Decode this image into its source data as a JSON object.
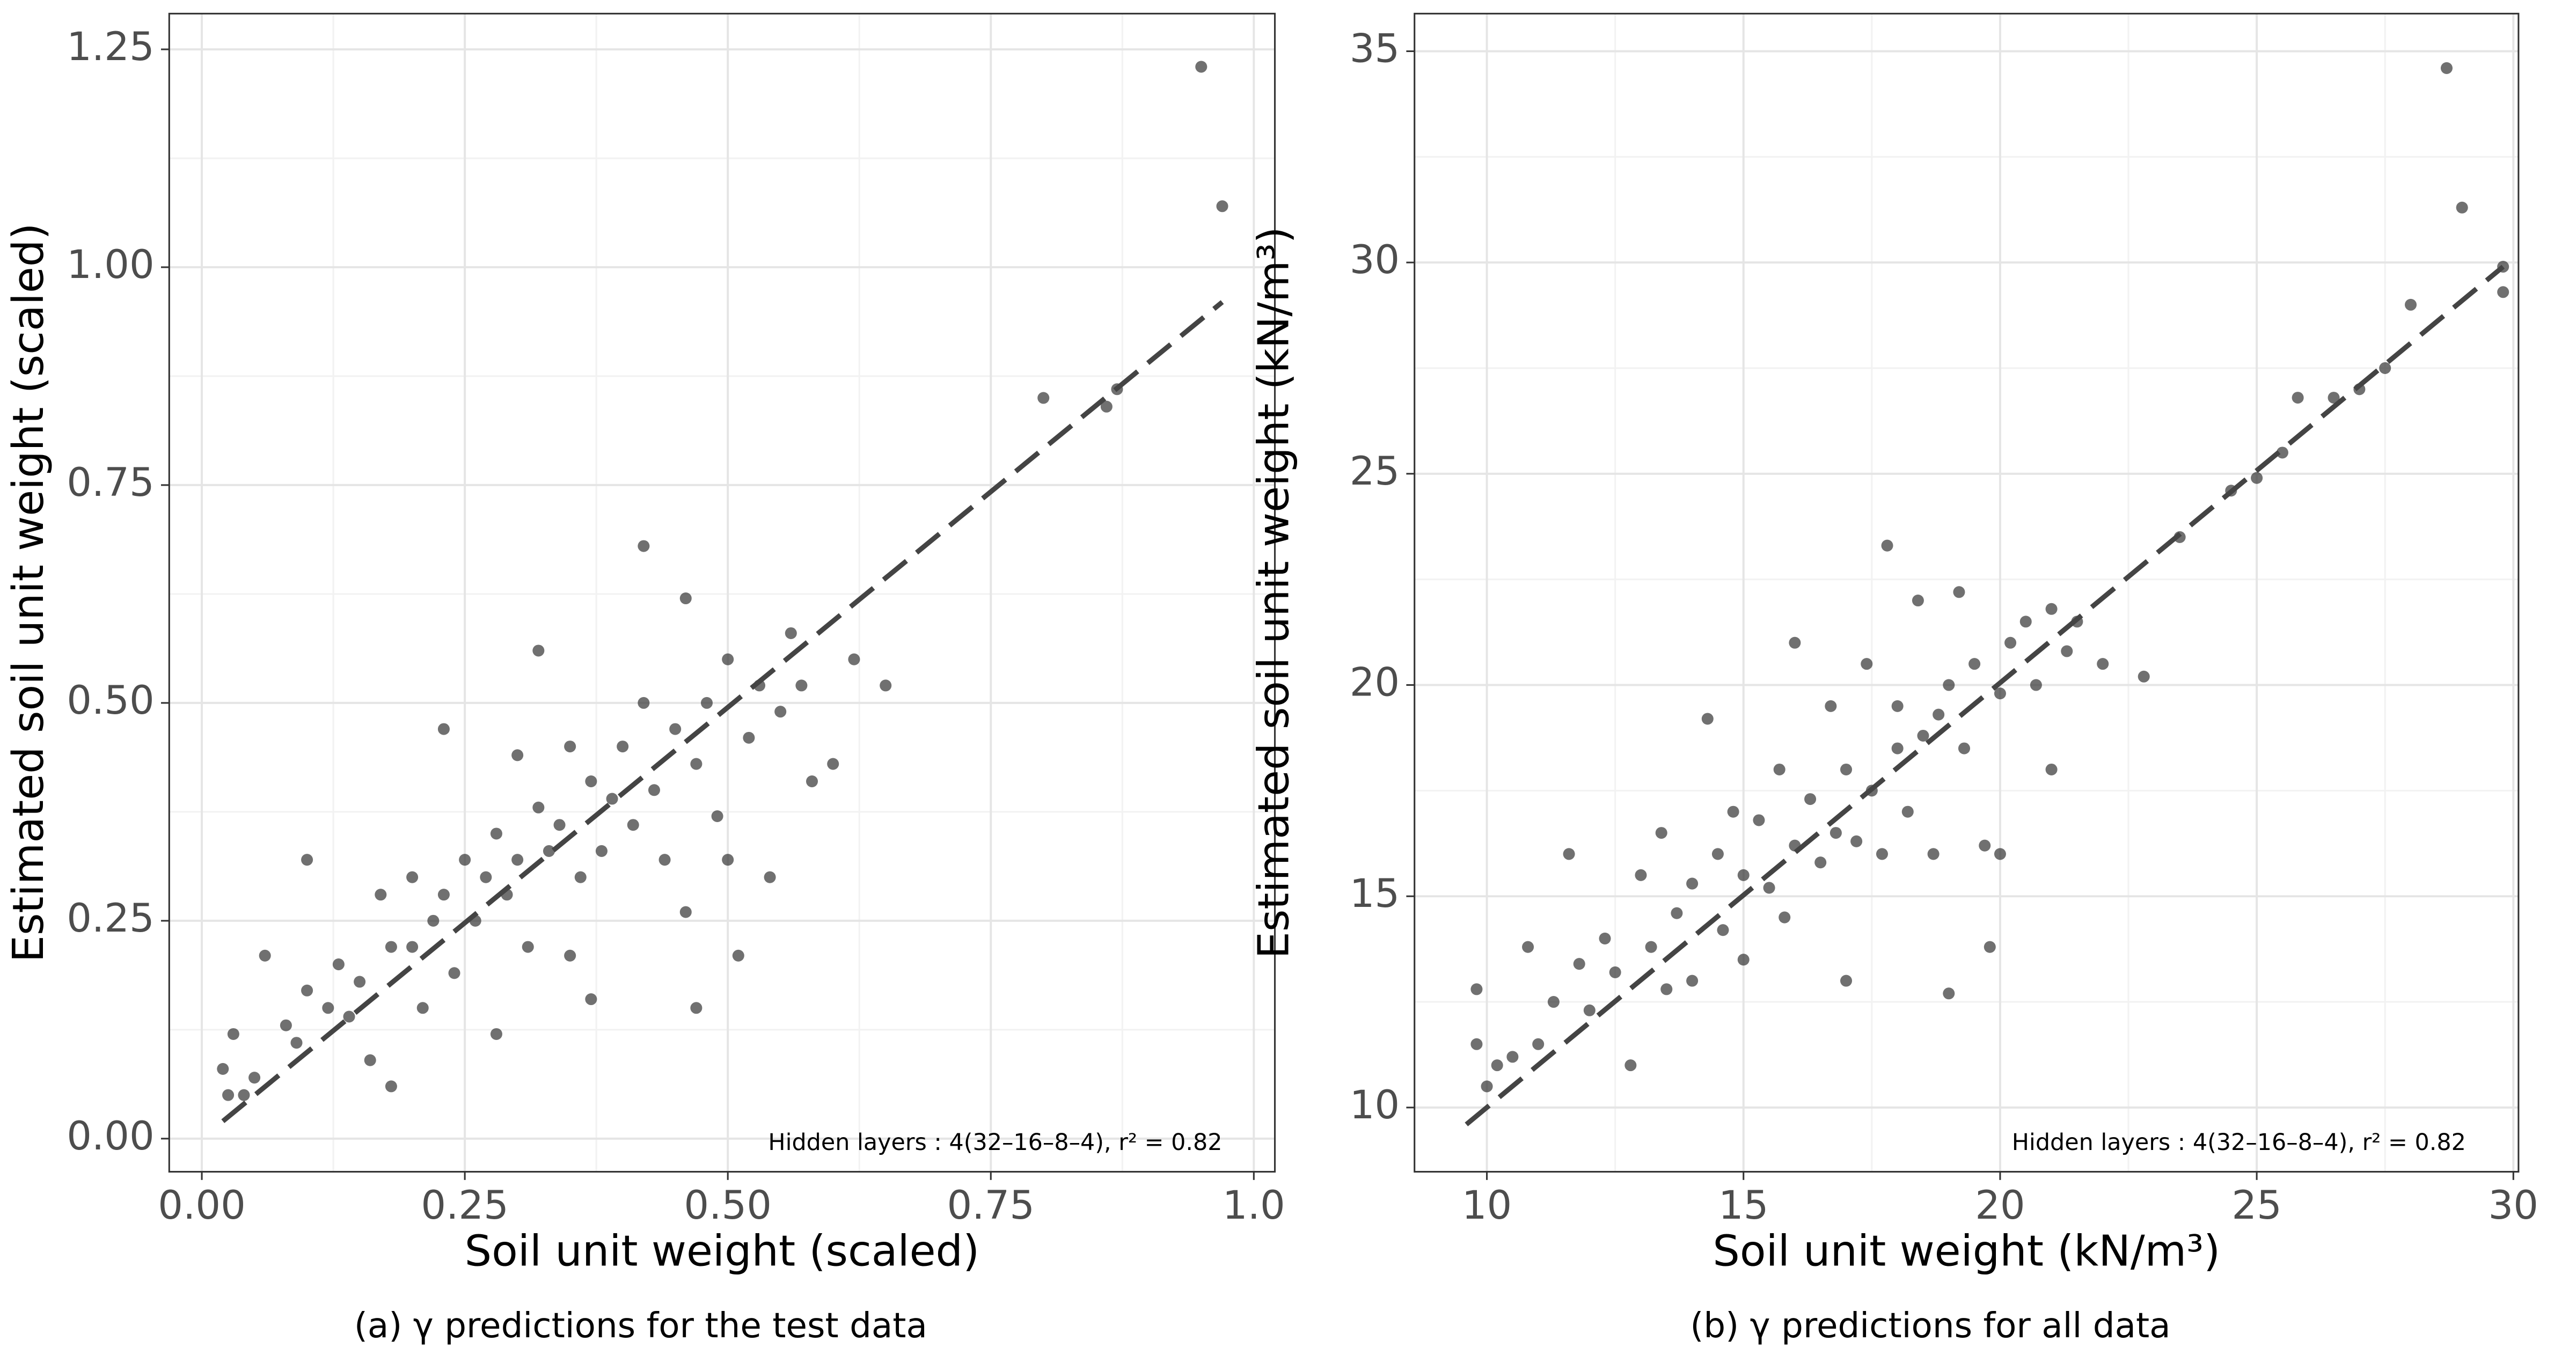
{
  "chart_data": [
    {
      "type": "scatter",
      "caption": "(a) γ predictions for the test data",
      "x_label": "Soil unit weight (scaled)",
      "y_label": "Estimated soil unit weight (scaled)",
      "annotation": "Hidden layers : 4(32–16–8–4),  r² = 0.82",
      "color": "#333333",
      "line_color": "#444444",
      "grid": true,
      "xlim": [
        -0.031,
        1.02
      ],
      "ylim": [
        -0.038,
        1.291
      ],
      "xticks": [
        {
          "value": 0,
          "label": "0.00"
        },
        0.25,
        {
          "value": 0.5,
          "label": "0.50"
        },
        0.75,
        {
          "value": 1,
          "label": "1.0"
        }
      ],
      "yticks": [
        {
          "value": 0,
          "label": "0.00"
        },
        0.25,
        {
          "value": 0.5,
          "label": "0.50"
        },
        0.75,
        {
          "value": 1,
          "label": "1.00"
        },
        1.25
      ],
      "xminor": [
        0.125,
        0.375,
        0.625,
        0.875
      ],
      "yminor": [
        0.125,
        0.375,
        0.625,
        0.875,
        1.125
      ],
      "fit_line": {
        "x": [
          0.02,
          0.97
        ],
        "y": [
          0.02,
          0.96
        ]
      },
      "x": [
        0.02,
        0.025,
        0.03,
        0.04,
        0.05,
        0.06,
        0.08,
        0.09,
        0.1,
        0.1,
        0.12,
        0.13,
        0.14,
        0.15,
        0.16,
        0.17,
        0.18,
        0.18,
        0.2,
        0.2,
        0.21,
        0.22,
        0.23,
        0.23,
        0.24,
        0.25,
        0.26,
        0.27,
        0.28,
        0.28,
        0.29,
        0.3,
        0.3,
        0.31,
        0.32,
        0.32,
        0.33,
        0.34,
        0.35,
        0.35,
        0.36,
        0.37,
        0.37,
        0.38,
        0.39,
        0.4,
        0.41,
        0.42,
        0.42,
        0.43,
        0.44,
        0.45,
        0.46,
        0.46,
        0.47,
        0.47,
        0.48,
        0.49,
        0.5,
        0.5,
        0.51,
        0.52,
        0.53,
        0.54,
        0.55,
        0.56,
        0.57,
        0.58,
        0.6,
        0.62,
        0.65,
        0.8,
        0.86,
        0.87,
        0.95,
        0.97
      ],
      "values": [
        0.08,
        0.05,
        0.12,
        0.05,
        0.07,
        0.21,
        0.13,
        0.11,
        0.32,
        0.17,
        0.15,
        0.2,
        0.14,
        0.18,
        0.09,
        0.28,
        0.22,
        0.06,
        0.3,
        0.22,
        0.15,
        0.25,
        0.47,
        0.28,
        0.19,
        0.32,
        0.25,
        0.3,
        0.12,
        0.35,
        0.28,
        0.44,
        0.32,
        0.22,
        0.38,
        0.56,
        0.33,
        0.36,
        0.21,
        0.45,
        0.3,
        0.16,
        0.41,
        0.33,
        0.39,
        0.45,
        0.36,
        0.68,
        0.5,
        0.4,
        0.32,
        0.47,
        0.62,
        0.26,
        0.15,
        0.43,
        0.5,
        0.37,
        0.55,
        0.32,
        0.21,
        0.46,
        0.52,
        0.3,
        0.49,
        0.58,
        0.52,
        0.41,
        0.43,
        0.55,
        0.52,
        0.85,
        0.84,
        0.86,
        1.23,
        1.07
      ]
    },
    {
      "type": "scatter",
      "caption": "(b) γ predictions for all data",
      "x_label": "Soil unit weight (kN/m³)",
      "y_label": "Estimated soil unit weight (kN/m³)",
      "annotation": "Hidden layers : 4(32–16–8–4),  r² = 0.82",
      "color": "#333333",
      "line_color": "#444444",
      "grid": true,
      "xlim": [
        8.59,
        30.1
      ],
      "ylim": [
        8.48,
        35.89
      ],
      "xticks": [
        10,
        15,
        20,
        25,
        30
      ],
      "yticks": [
        10,
        15,
        20,
        25,
        30,
        35
      ],
      "xminor": [
        12.5,
        17.5,
        22.5,
        27.5
      ],
      "yminor": [
        12.5,
        17.5,
        22.5,
        27.5,
        32.5
      ],
      "fit_line": {
        "x": [
          9.6,
          29.8
        ],
        "y": [
          9.6,
          29.9
        ]
      },
      "x": [
        9.8,
        9.8,
        10,
        10.2,
        10.5,
        10.8,
        11,
        11.3,
        11.6,
        11.8,
        12,
        12.3,
        12.5,
        12.8,
        13,
        13.2,
        13.4,
        13.5,
        13.7,
        14,
        14,
        14.3,
        14.5,
        14.6,
        14.8,
        15,
        15,
        15.3,
        15.5,
        15.7,
        15.8,
        16,
        16,
        16.3,
        16.5,
        16.7,
        16.8,
        17,
        17,
        17.2,
        17.4,
        17.5,
        17.7,
        17.8,
        18,
        18,
        18.2,
        18.4,
        18.5,
        18.7,
        18.8,
        19,
        19,
        19.2,
        19.3,
        19.5,
        19.7,
        19.8,
        20,
        20,
        20.2,
        20.5,
        20.7,
        21,
        21,
        21.3,
        21.5,
        22,
        22.8,
        23.5,
        24.5,
        25,
        25.5,
        25.8,
        26.5,
        27,
        27.5,
        28,
        28.7,
        29,
        29.8,
        29.8
      ],
      "values": [
        12.8,
        11.5,
        10.5,
        11,
        11.2,
        13.8,
        11.5,
        12.5,
        16,
        13.4,
        12.3,
        14,
        13.2,
        11,
        15.5,
        13.8,
        16.5,
        12.8,
        14.6,
        15.3,
        13,
        19.2,
        16,
        14.2,
        17,
        15.5,
        13.5,
        16.8,
        15.2,
        18,
        14.5,
        16.2,
        21,
        17.3,
        15.8,
        19.5,
        16.5,
        18,
        13,
        16.3,
        20.5,
        17.5,
        16,
        23.3,
        18.5,
        19.5,
        17,
        22,
        18.8,
        16,
        19.3,
        12.7,
        20,
        22.2,
        18.5,
        20.5,
        16.2,
        13.8,
        19.8,
        16,
        21,
        21.5,
        20,
        21.8,
        18,
        20.8,
        21.5,
        20.5,
        20.2,
        23.5,
        24.6,
        24.9,
        25.5,
        26.8,
        26.8,
        27,
        27.5,
        29,
        34.6,
        31.3,
        29.9,
        29.3
      ]
    }
  ]
}
